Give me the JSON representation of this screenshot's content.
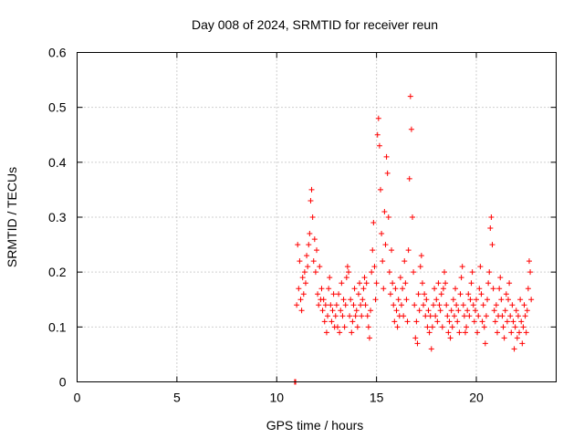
{
  "chart_data": {
    "type": "scatter",
    "title": "Day 008 of 2024, SRMTID for receiver reun",
    "xlabel": "GPS time / hours",
    "ylabel": "SRMTID / TECUs",
    "xlim": [
      0,
      24
    ],
    "ylim": [
      0,
      0.6
    ],
    "xticks": [
      0,
      5,
      10,
      15,
      20
    ],
    "xtick_labels": [
      "0",
      "5",
      "10",
      "15",
      "20"
    ],
    "yticks": [
      0,
      0.1,
      0.2,
      0.3,
      0.4,
      0.5,
      0.6
    ],
    "ytick_labels": [
      "0",
      "0.1",
      "0.2",
      "0.3",
      "0.4",
      "0.5",
      "0.6"
    ],
    "grid": true,
    "marker": "+",
    "color": "#ff0000",
    "series": [
      {
        "name": "SRMTID",
        "points": [
          [
            10.9,
            0.0
          ],
          [
            10.95,
            0.0
          ],
          [
            11.0,
            0.14
          ],
          [
            11.05,
            0.25
          ],
          [
            11.1,
            0.17
          ],
          [
            11.15,
            0.22
          ],
          [
            11.2,
            0.15
          ],
          [
            11.25,
            0.13
          ],
          [
            11.3,
            0.19
          ],
          [
            11.35,
            0.16
          ],
          [
            11.4,
            0.2
          ],
          [
            11.45,
            0.18
          ],
          [
            11.5,
            0.23
          ],
          [
            11.55,
            0.21
          ],
          [
            11.6,
            0.25
          ],
          [
            11.65,
            0.27
          ],
          [
            11.7,
            0.33
          ],
          [
            11.75,
            0.35
          ],
          [
            11.8,
            0.3
          ],
          [
            11.85,
            0.22
          ],
          [
            11.9,
            0.26
          ],
          [
            11.95,
            0.2
          ],
          [
            12.0,
            0.24
          ],
          [
            12.05,
            0.16
          ],
          [
            12.1,
            0.14
          ],
          [
            12.15,
            0.21
          ],
          [
            12.2,
            0.15
          ],
          [
            12.25,
            0.17
          ],
          [
            12.3,
            0.13
          ],
          [
            12.35,
            0.15
          ],
          [
            12.4,
            0.11
          ],
          [
            12.45,
            0.14
          ],
          [
            12.5,
            0.09
          ],
          [
            12.55,
            0.12
          ],
          [
            12.6,
            0.17
          ],
          [
            12.65,
            0.19
          ],
          [
            12.7,
            0.14
          ],
          [
            12.75,
            0.11
          ],
          [
            12.8,
            0.13
          ],
          [
            12.85,
            0.16
          ],
          [
            12.9,
            0.1
          ],
          [
            12.95,
            0.12
          ],
          [
            13.0,
            0.14
          ],
          [
            13.05,
            0.1
          ],
          [
            13.1,
            0.16
          ],
          [
            13.15,
            0.09
          ],
          [
            13.2,
            0.13
          ],
          [
            13.25,
            0.18
          ],
          [
            13.3,
            0.12
          ],
          [
            13.35,
            0.15
          ],
          [
            13.4,
            0.1
          ],
          [
            13.45,
            0.14
          ],
          [
            13.5,
            0.19
          ],
          [
            13.55,
            0.21
          ],
          [
            13.6,
            0.2
          ],
          [
            13.65,
            0.12
          ],
          [
            13.7,
            0.15
          ],
          [
            13.75,
            0.09
          ],
          [
            13.8,
            0.11
          ],
          [
            13.85,
            0.14
          ],
          [
            13.9,
            0.17
          ],
          [
            13.95,
            0.12
          ],
          [
            14.0,
            0.13
          ],
          [
            14.05,
            0.1
          ],
          [
            14.1,
            0.16
          ],
          [
            14.15,
            0.18
          ],
          [
            14.2,
            0.14
          ],
          [
            14.25,
            0.12
          ],
          [
            14.3,
            0.15
          ],
          [
            14.35,
            0.17
          ],
          [
            14.4,
            0.19
          ],
          [
            14.45,
            0.14
          ],
          [
            14.5,
            0.18
          ],
          [
            14.55,
            0.12
          ],
          [
            14.6,
            0.1
          ],
          [
            14.65,
            0.08
          ],
          [
            14.7,
            0.13
          ],
          [
            14.75,
            0.2
          ],
          [
            14.8,
            0.24
          ],
          [
            14.85,
            0.29
          ],
          [
            14.9,
            0.21
          ],
          [
            14.95,
            0.15
          ],
          [
            15.0,
            0.18
          ],
          [
            15.05,
            0.45
          ],
          [
            15.1,
            0.48
          ],
          [
            15.15,
            0.43
          ],
          [
            15.2,
            0.35
          ],
          [
            15.25,
            0.27
          ],
          [
            15.3,
            0.22
          ],
          [
            15.35,
            0.17
          ],
          [
            15.4,
            0.31
          ],
          [
            15.45,
            0.25
          ],
          [
            15.5,
            0.41
          ],
          [
            15.55,
            0.38
          ],
          [
            15.6,
            0.3
          ],
          [
            15.65,
            0.2
          ],
          [
            15.7,
            0.16
          ],
          [
            15.75,
            0.24
          ],
          [
            15.8,
            0.18
          ],
          [
            15.85,
            0.14
          ],
          [
            15.9,
            0.11
          ],
          [
            15.95,
            0.17
          ],
          [
            16.0,
            0.13
          ],
          [
            16.05,
            0.1
          ],
          [
            16.1,
            0.15
          ],
          [
            16.15,
            0.12
          ],
          [
            16.2,
            0.19
          ],
          [
            16.25,
            0.14
          ],
          [
            16.3,
            0.17
          ],
          [
            16.35,
            0.12
          ],
          [
            16.4,
            0.22
          ],
          [
            16.45,
            0.18
          ],
          [
            16.5,
            0.15
          ],
          [
            16.55,
            0.11
          ],
          [
            16.6,
            0.24
          ],
          [
            16.65,
            0.37
          ],
          [
            16.7,
            0.52
          ],
          [
            16.75,
            0.46
          ],
          [
            16.8,
            0.3
          ],
          [
            16.85,
            0.2
          ],
          [
            16.9,
            0.14
          ],
          [
            16.95,
            0.08
          ],
          [
            17.0,
            0.11
          ],
          [
            17.05,
            0.07
          ],
          [
            17.1,
            0.16
          ],
          [
            17.15,
            0.13
          ],
          [
            17.2,
            0.21
          ],
          [
            17.25,
            0.23
          ],
          [
            17.3,
            0.18
          ],
          [
            17.35,
            0.14
          ],
          [
            17.4,
            0.16
          ],
          [
            17.45,
            0.12
          ],
          [
            17.5,
            0.15
          ],
          [
            17.55,
            0.1
          ],
          [
            17.6,
            0.13
          ],
          [
            17.65,
            0.09
          ],
          [
            17.7,
            0.12
          ],
          [
            17.75,
            0.06
          ],
          [
            17.8,
            0.1
          ],
          [
            17.85,
            0.14
          ],
          [
            17.9,
            0.17
          ],
          [
            17.95,
            0.12
          ],
          [
            18.0,
            0.15
          ],
          [
            18.05,
            0.11
          ],
          [
            18.1,
            0.18
          ],
          [
            18.15,
            0.14
          ],
          [
            18.2,
            0.13
          ],
          [
            18.25,
            0.16
          ],
          [
            18.3,
            0.1
          ],
          [
            18.35,
            0.17
          ],
          [
            18.4,
            0.2
          ],
          [
            18.45,
            0.18
          ],
          [
            18.5,
            0.14
          ],
          [
            18.55,
            0.12
          ],
          [
            18.6,
            0.09
          ],
          [
            18.65,
            0.11
          ],
          [
            18.7,
            0.08
          ],
          [
            18.75,
            0.13
          ],
          [
            18.8,
            0.1
          ],
          [
            18.85,
            0.15
          ],
          [
            18.9,
            0.12
          ],
          [
            18.95,
            0.17
          ],
          [
            19.0,
            0.14
          ],
          [
            19.05,
            0.11
          ],
          [
            19.1,
            0.13
          ],
          [
            19.15,
            0.09
          ],
          [
            19.2,
            0.16
          ],
          [
            19.25,
            0.19
          ],
          [
            19.3,
            0.21
          ],
          [
            19.35,
            0.14
          ],
          [
            19.4,
            0.12
          ],
          [
            19.45,
            0.09
          ],
          [
            19.5,
            0.1
          ],
          [
            19.55,
            0.13
          ],
          [
            19.6,
            0.16
          ],
          [
            19.65,
            0.12
          ],
          [
            19.7,
            0.15
          ],
          [
            19.75,
            0.18
          ],
          [
            19.8,
            0.2
          ],
          [
            19.85,
            0.14
          ],
          [
            19.9,
            0.11
          ],
          [
            19.95,
            0.13
          ],
          [
            20.0,
            0.15
          ],
          [
            20.05,
            0.09
          ],
          [
            20.1,
            0.12
          ],
          [
            20.15,
            0.17
          ],
          [
            20.2,
            0.21
          ],
          [
            20.25,
            0.16
          ],
          [
            20.3,
            0.11
          ],
          [
            20.35,
            0.14
          ],
          [
            20.4,
            0.1
          ],
          [
            20.45,
            0.07
          ],
          [
            20.5,
            0.12
          ],
          [
            20.55,
            0.15
          ],
          [
            20.6,
            0.18
          ],
          [
            20.65,
            0.2
          ],
          [
            20.7,
            0.28
          ],
          [
            20.75,
            0.3
          ],
          [
            20.8,
            0.25
          ],
          [
            20.85,
            0.17
          ],
          [
            20.9,
            0.13
          ],
          [
            20.95,
            0.11
          ],
          [
            21.0,
            0.14
          ],
          [
            21.05,
            0.09
          ],
          [
            21.1,
            0.12
          ],
          [
            21.15,
            0.17
          ],
          [
            21.2,
            0.19
          ],
          [
            21.25,
            0.15
          ],
          [
            21.3,
            0.12
          ],
          [
            21.35,
            0.1
          ],
          [
            21.4,
            0.08
          ],
          [
            21.45,
            0.13
          ],
          [
            21.5,
            0.16
          ],
          [
            21.55,
            0.11
          ],
          [
            21.6,
            0.15
          ],
          [
            21.65,
            0.18
          ],
          [
            21.7,
            0.12
          ],
          [
            21.75,
            0.09
          ],
          [
            21.8,
            0.14
          ],
          [
            21.85,
            0.11
          ],
          [
            21.9,
            0.06
          ],
          [
            21.95,
            0.1
          ],
          [
            22.0,
            0.13
          ],
          [
            22.05,
            0.08
          ],
          [
            22.1,
            0.12
          ],
          [
            22.15,
            0.09
          ],
          [
            22.2,
            0.15
          ],
          [
            22.25,
            0.11
          ],
          [
            22.3,
            0.07
          ],
          [
            22.35,
            0.1
          ],
          [
            22.4,
            0.14
          ],
          [
            22.45,
            0.12
          ],
          [
            22.5,
            0.09
          ],
          [
            22.55,
            0.13
          ],
          [
            22.6,
            0.17
          ],
          [
            22.65,
            0.22
          ],
          [
            22.7,
            0.2
          ],
          [
            22.75,
            0.15
          ]
        ]
      }
    ]
  }
}
